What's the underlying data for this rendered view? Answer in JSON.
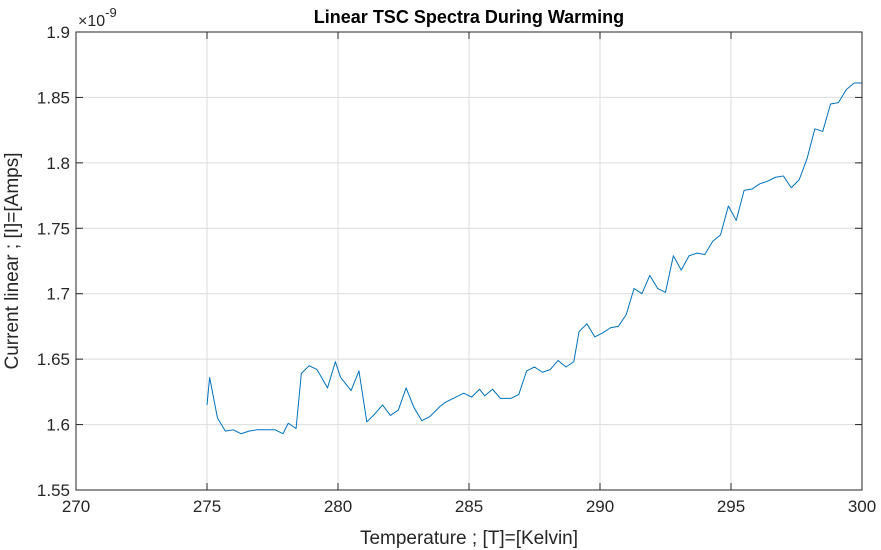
{
  "chart_data": {
    "type": "line",
    "title": "Linear TSC Spectra During Warming",
    "xlabel": "Temperature ; [T]=[Kelvin]",
    "ylabel": "Current linear ; [I]=[Amps]",
    "y_multiplier": {
      "prefix": "×10",
      "exponent": "-9"
    },
    "xlim": [
      270,
      300
    ],
    "ylim": [
      1.55,
      1.9
    ],
    "x_ticks": [
      270,
      275,
      280,
      285,
      290,
      295,
      300
    ],
    "x_tick_labels": [
      "270",
      "275",
      "280",
      "285",
      "290",
      "295",
      "300"
    ],
    "y_ticks": [
      1.55,
      1.6,
      1.65,
      1.7,
      1.75,
      1.8,
      1.85,
      1.9
    ],
    "y_tick_labels": [
      "1.55",
      "1.6",
      "1.65",
      "1.7",
      "1.75",
      "1.8",
      "1.85",
      "1.9"
    ],
    "grid": true,
    "colors": {
      "line": "#0072BD",
      "grid": "#dcdcdc",
      "axis": "#262626"
    },
    "series": [
      {
        "x": [
          275.0,
          275.1,
          275.4,
          275.7,
          276.0,
          276.3,
          276.6,
          276.9,
          277.2,
          277.6,
          277.9,
          278.1,
          278.4,
          278.6,
          278.9,
          279.2,
          279.6,
          279.9,
          280.1,
          280.5,
          280.8,
          281.1,
          281.4,
          281.7,
          282.0,
          282.3,
          282.6,
          282.9,
          283.2,
          283.5,
          283.9,
          284.1,
          284.5,
          284.8,
          285.1,
          285.4,
          285.6,
          285.9,
          286.2,
          286.6,
          286.9,
          287.2,
          287.5,
          287.8,
          288.1,
          288.4,
          288.7,
          289.0,
          289.2,
          289.5,
          289.8,
          290.1,
          290.4,
          290.7,
          291.0,
          291.3,
          291.6,
          291.9,
          292.2,
          292.5,
          292.8,
          293.1,
          293.4,
          293.7,
          294.0,
          294.3,
          294.6,
          294.9,
          295.2,
          295.5,
          295.8,
          296.1,
          296.4,
          296.7,
          297.0,
          297.3,
          297.6,
          297.9,
          298.2,
          298.5,
          298.8,
          299.1,
          299.4,
          299.7,
          300.0
        ],
        "y": [
          1.615,
          1.636,
          1.605,
          1.595,
          1.596,
          1.593,
          1.595,
          1.596,
          1.596,
          1.596,
          1.593,
          1.601,
          1.597,
          1.639,
          1.645,
          1.642,
          1.628,
          1.648,
          1.636,
          1.626,
          1.641,
          1.602,
          1.608,
          1.615,
          1.607,
          1.611,
          1.628,
          1.613,
          1.603,
          1.606,
          1.614,
          1.617,
          1.621,
          1.624,
          1.621,
          1.627,
          1.622,
          1.627,
          1.62,
          1.62,
          1.623,
          1.641,
          1.644,
          1.64,
          1.642,
          1.649,
          1.644,
          1.648,
          1.671,
          1.677,
          1.667,
          1.67,
          1.674,
          1.675,
          1.684,
          1.704,
          1.7,
          1.714,
          1.704,
          1.701,
          1.729,
          1.718,
          1.729,
          1.731,
          1.73,
          1.74,
          1.745,
          1.767,
          1.756,
          1.779,
          1.78,
          1.784,
          1.786,
          1.789,
          1.79,
          1.781,
          1.787,
          1.803,
          1.826,
          1.824,
          1.845,
          1.846,
          1.856,
          1.861,
          1.861
        ]
      }
    ]
  }
}
